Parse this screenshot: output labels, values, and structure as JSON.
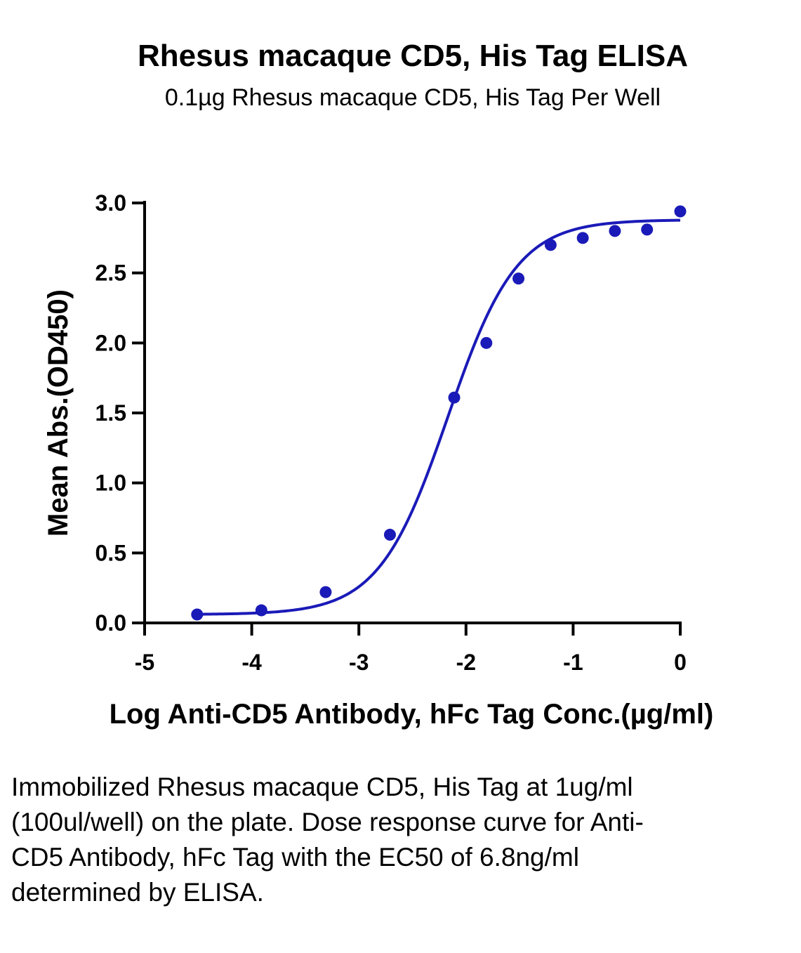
{
  "chart_data": {
    "type": "scatter",
    "title": "Rhesus macaque CD5, His Tag ELISA",
    "subtitle": "0.1µg Rhesus macaque CD5, His Tag Per Well",
    "xlabel": "Log Anti-CD5 Antibody, hFc Tag Conc.(µg/ml)",
    "ylabel": "Mean Abs.(OD450)",
    "xlim": [
      -5,
      0
    ],
    "ylim": [
      0,
      3.0
    ],
    "x_ticks": [
      -5,
      -4,
      -3,
      -2,
      -1,
      0
    ],
    "x_tick_labels": [
      "-5",
      "-4",
      "-3",
      "-2",
      "-1",
      "0"
    ],
    "y_ticks": [
      0,
      0.5,
      1.0,
      1.5,
      2.0,
      2.5,
      3.0
    ],
    "y_tick_labels": [
      "0.0",
      "0.5",
      "1.0",
      "1.5",
      "2.0",
      "2.5",
      "3.0"
    ],
    "grid": false,
    "legend": "none",
    "color": "#1a1ab8",
    "series": [
      {
        "x": [
          -4.51,
          -3.91,
          -3.31,
          -2.71,
          -2.11,
          -1.81,
          -1.51,
          -1.21,
          -0.91,
          -0.61,
          -0.31,
          0.0
        ],
        "y": [
          0.06,
          0.09,
          0.22,
          0.63,
          1.61,
          2.0,
          2.46,
          2.7,
          2.75,
          2.8,
          2.81,
          2.94
        ]
      }
    ],
    "fit_curve": {
      "model": "4PL",
      "bottom": 0.06,
      "top": 2.88,
      "log_ec50": -2.17,
      "hill_slope": 1.35,
      "x_range": [
        -4.51,
        0.0
      ]
    }
  },
  "caption": "Immobilized Rhesus macaque CD5, His Tag at 1ug/ml (100ul/well) on the plate. Dose response curve for Anti-CD5 Antibody, hFc Tag with the EC50 of 6.8ng/ml determined by ELISA."
}
